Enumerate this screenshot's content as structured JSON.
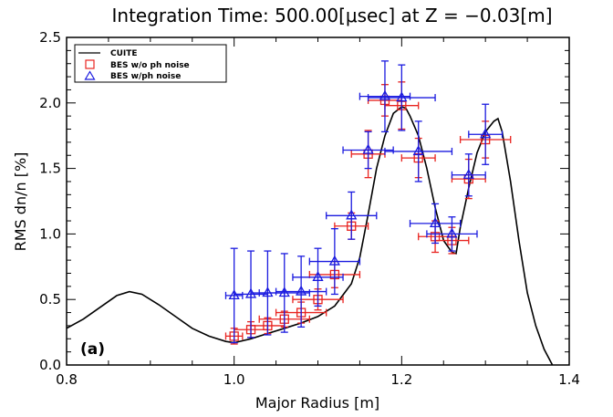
{
  "chart_data": {
    "type": "line",
    "title": "Integration Time: 500.00[μsec] at Z = −0.03[m]",
    "xlabel": "Major Radius [m]",
    "ylabel": "RMS dn/n [%]",
    "xlim": [
      0.8,
      1.4
    ],
    "ylim": [
      0.0,
      2.5
    ],
    "xticks": [
      0.8,
      1.0,
      1.2,
      1.4
    ],
    "yticks": [
      0.0,
      0.5,
      1.0,
      1.5,
      2.0,
      2.5
    ],
    "x_tick_labels": [
      "0.8",
      "1.0",
      "1.2",
      "1.4"
    ],
    "y_tick_labels": [
      "0.0",
      "0.5",
      "1.0",
      "1.5",
      "2.0",
      "2.5"
    ],
    "grid": false,
    "legend_position": "top-left",
    "panel_label": "(a)",
    "series": [
      {
        "name": "CUITE",
        "kind": "line",
        "color": "#000000",
        "x": [
          0.79,
          0.8,
          0.82,
          0.84,
          0.86,
          0.875,
          0.89,
          0.91,
          0.93,
          0.95,
          0.97,
          0.99,
          1.0,
          1.02,
          1.04,
          1.06,
          1.08,
          1.1,
          1.12,
          1.14,
          1.15,
          1.16,
          1.17,
          1.18,
          1.19,
          1.2,
          1.205,
          1.21,
          1.22,
          1.23,
          1.24,
          1.25,
          1.26,
          1.265,
          1.27,
          1.28,
          1.29,
          1.3,
          1.31,
          1.315,
          1.32,
          1.33,
          1.34,
          1.35,
          1.36,
          1.37,
          1.38
        ],
        "y": [
          0.22,
          0.28,
          0.35,
          0.44,
          0.53,
          0.56,
          0.54,
          0.46,
          0.37,
          0.28,
          0.22,
          0.18,
          0.17,
          0.2,
          0.24,
          0.28,
          0.32,
          0.37,
          0.45,
          0.62,
          0.82,
          1.15,
          1.5,
          1.75,
          1.92,
          1.97,
          1.96,
          1.9,
          1.75,
          1.5,
          1.2,
          0.95,
          0.86,
          0.85,
          1.05,
          1.35,
          1.62,
          1.78,
          1.86,
          1.88,
          1.78,
          1.4,
          0.95,
          0.55,
          0.3,
          0.12,
          0.0
        ]
      },
      {
        "name": "BES w/o ph noise",
        "kind": "errorbar",
        "marker": "square",
        "color": "#e8231f",
        "x": [
          1.0,
          1.02,
          1.04,
          1.06,
          1.08,
          1.1,
          1.12,
          1.14,
          1.16,
          1.18,
          1.2,
          1.22,
          1.24,
          1.26,
          1.28,
          1.3
        ],
        "y": [
          0.22,
          0.27,
          0.3,
          0.35,
          0.4,
          0.5,
          0.69,
          1.06,
          1.61,
          2.02,
          1.98,
          1.58,
          0.98,
          0.95,
          1.42,
          1.72
        ],
        "xerr": [
          0.01,
          0.02,
          0.02,
          0.03,
          0.03,
          0.03,
          0.03,
          0.02,
          0.02,
          0.02,
          0.02,
          0.02,
          0.02,
          0.02,
          0.02,
          0.03
        ],
        "yerr": [
          0.06,
          0.06,
          0.06,
          0.06,
          0.08,
          0.08,
          0.1,
          0.1,
          0.18,
          0.12,
          0.18,
          0.15,
          0.12,
          0.1,
          0.15,
          0.14
        ]
      },
      {
        "name": "BES w/ph noise",
        "kind": "errorbar",
        "marker": "triangle",
        "color": "#1a1adf",
        "x": [
          1.0,
          1.02,
          1.04,
          1.06,
          1.08,
          1.1,
          1.12,
          1.14,
          1.16,
          1.18,
          1.2,
          1.22,
          1.24,
          1.26,
          1.28,
          1.3
        ],
        "y": [
          0.53,
          0.54,
          0.55,
          0.55,
          0.56,
          0.67,
          0.79,
          1.14,
          1.64,
          2.05,
          2.04,
          1.63,
          1.08,
          1.0,
          1.45,
          1.76
        ],
        "xerr": [
          0.01,
          0.02,
          0.02,
          0.03,
          0.03,
          0.03,
          0.03,
          0.03,
          0.03,
          0.03,
          0.04,
          0.04,
          0.03,
          0.03,
          0.02,
          0.02
        ],
        "yerr": [
          0.36,
          0.33,
          0.32,
          0.3,
          0.27,
          0.22,
          0.25,
          0.18,
          0.14,
          0.27,
          0.25,
          0.23,
          0.15,
          0.13,
          0.16,
          0.23
        ]
      }
    ]
  }
}
